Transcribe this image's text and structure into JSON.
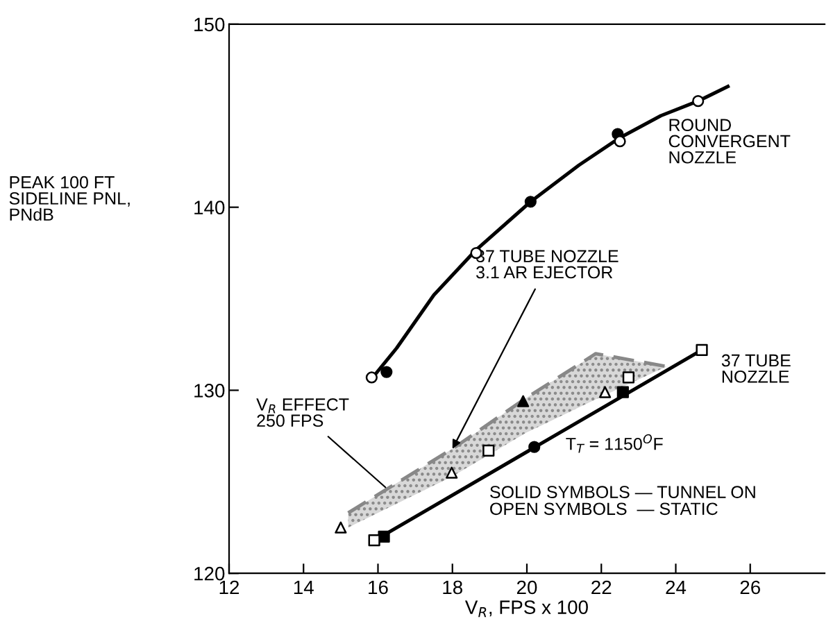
{
  "chart_data": {
    "type": "line",
    "xlabel": "V$_{R}$, FPS x 100",
    "ylabel": "PEAK 100 FT\nSIDELINE PNL,\nPNdB",
    "xlim": [
      12,
      28
    ],
    "ylim": [
      120,
      150
    ],
    "xticks": [
      12,
      14,
      16,
      18,
      20,
      22,
      24,
      26
    ],
    "yticks": [
      120,
      130,
      140,
      150
    ],
    "grid": false,
    "legend": false,
    "series": [
      {
        "type": "line",
        "name": "ROUND\nCONVERGENT\nNOZZLE",
        "color": "#000000",
        "marker": "none",
        "line_style": "solid",
        "x": [
          15.9,
          16.5,
          17.5,
          18.6,
          20.1,
          21.4,
          22.5,
          23.6,
          24.6,
          25.4
        ],
        "values": [
          130.8,
          132.3,
          135.2,
          137.6,
          140.3,
          142.3,
          143.8,
          145.0,
          145.8,
          146.6
        ]
      },
      {
        "type": "line",
        "name": "37 TUBE\nNOZZLE",
        "color": "#000000",
        "marker": "none",
        "line_style": "solid",
        "x": [
          16.0,
          24.7
        ],
        "values": [
          121.9,
          132.2
        ]
      },
      {
        "color": "#888888",
        "line_style": "dashed",
        "x": [
          15.2,
          18.0,
          20.0,
          21.85,
          23.75
        ],
        "values": [
          123.3,
          126.8,
          129.6,
          132.0,
          131.3
        ],
        "lower": [
          122.5,
          125.3,
          127.7,
          129.5,
          131.3
        ],
        "upper": [
          123.3,
          126.8,
          129.6,
          132.0,
          131.3
        ]
      },
      {
        "type": "scatter",
        "marker": "circle",
        "color": "#ffffff",
        "x": [
          15.83,
          18.64,
          22.5,
          24.6
        ],
        "values": [
          130.7,
          137.5,
          143.6,
          145.8
        ]
      },
      {
        "type": "scatter",
        "marker": "circle",
        "color": "#000000",
        "x": [
          16.23,
          20.1,
          22.44,
          20.2
        ],
        "values": [
          131.0,
          140.3,
          144.0,
          126.9
        ]
      },
      {
        "type": "scatter",
        "marker": "square",
        "color": "#ffffff",
        "x": [
          15.9,
          18.97,
          22.73,
          24.7
        ],
        "values": [
          121.8,
          126.7,
          130.7,
          132.2
        ]
      },
      {
        "type": "scatter",
        "marker": "square",
        "color": "#000000",
        "x": [
          16.16,
          22.58
        ],
        "values": [
          122.0,
          129.9
        ]
      },
      {
        "type": "scatter",
        "marker": "triangle",
        "color": "#ffffff",
        "x": [
          15.0,
          17.98,
          22.1
        ],
        "values": [
          122.5,
          125.5,
          129.9
        ]
      },
      {
        "type": "scatter",
        "marker": "triangle",
        "color": "#000000",
        "x": [
          19.9
        ],
        "values": [
          129.4
        ]
      }
    ],
    "annotations": [
      {
        "text": "37 TUBE NOZZLE\n3.1 AR EJECTOR",
        "x": 18.0,
        "y": 126.8
      },
      {
        "text": "V$_{R}$ EFFECT\n250 FPS",
        "x": 16.2,
        "y": 124.7
      },
      "T$_{T}$ = 1150$^{O}$F",
      "SOLID SYMBOLS — TUNNEL ON\nOPEN SYMBOLS  — STATIC"
    ]
  }
}
